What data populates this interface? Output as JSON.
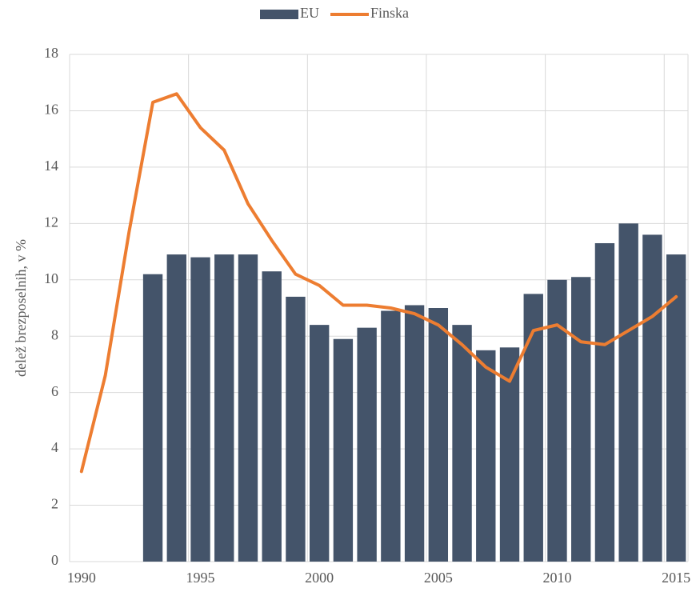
{
  "chart_data": {
    "type": "bar-line",
    "y_label": "delež brezposelnih, v %",
    "categories": [
      "1990",
      null,
      null,
      null,
      null,
      "1995",
      null,
      null,
      null,
      null,
      "2000",
      null,
      null,
      null,
      null,
      "2005",
      null,
      null,
      null,
      null,
      "2010",
      null,
      null,
      null,
      null,
      "2015"
    ],
    "series": [
      {
        "name": "EU",
        "type": "bar",
        "color": "#44546a",
        "values": [
          null,
          null,
          null,
          10.2,
          10.9,
          10.8,
          10.9,
          10.9,
          10.3,
          9.4,
          8.4,
          7.9,
          8.3,
          8.9,
          9.1,
          9.0,
          8.4,
          7.5,
          7.6,
          9.5,
          10.0,
          10.1,
          11.3,
          12.0,
          11.6,
          10.9
        ]
      },
      {
        "name": "Finska",
        "type": "line",
        "color": "#ed7d31",
        "values": [
          3.2,
          6.6,
          11.7,
          16.3,
          16.6,
          15.4,
          14.6,
          12.7,
          11.4,
          10.2,
          9.8,
          9.1,
          9.1,
          9.0,
          8.8,
          8.4,
          7.7,
          6.9,
          6.4,
          8.2,
          8.4,
          7.8,
          7.7,
          8.2,
          8.7,
          9.4
        ]
      }
    ],
    "ylim": [
      0,
      18
    ],
    "yticks": [
      0,
      2,
      4,
      6,
      8,
      10,
      12,
      14,
      16,
      18
    ],
    "grid": true,
    "legend": "top"
  }
}
